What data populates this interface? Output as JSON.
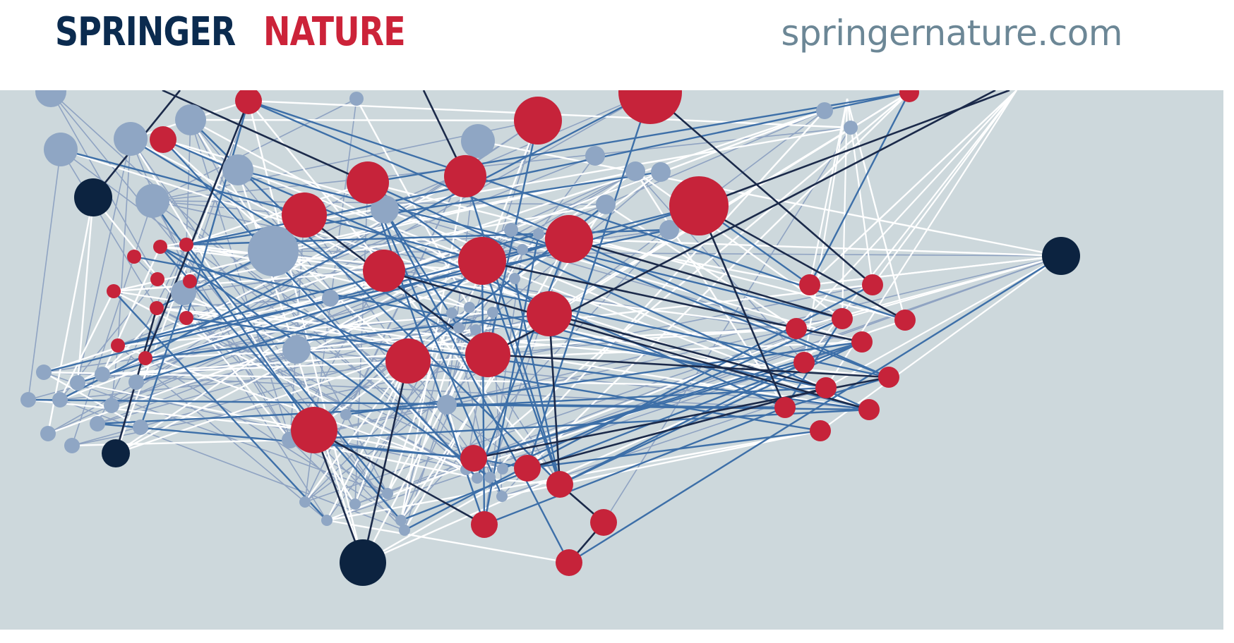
{
  "header": {
    "logo_springer": "SPRINGER",
    "logo_nature": "NATURE",
    "website": "springernature.com"
  },
  "colors": {
    "brand_navy": "#0b2b4f",
    "brand_red": "#cc2339",
    "url_gray": "#6c8796",
    "banner_bg": "#cdd8dc",
    "node_red": "#c6233a",
    "node_dark": "#0c2340",
    "node_light": "#8fa6c4"
  },
  "artwork": {
    "type": "network-graphic",
    "icon": "network-graph-illustration"
  }
}
